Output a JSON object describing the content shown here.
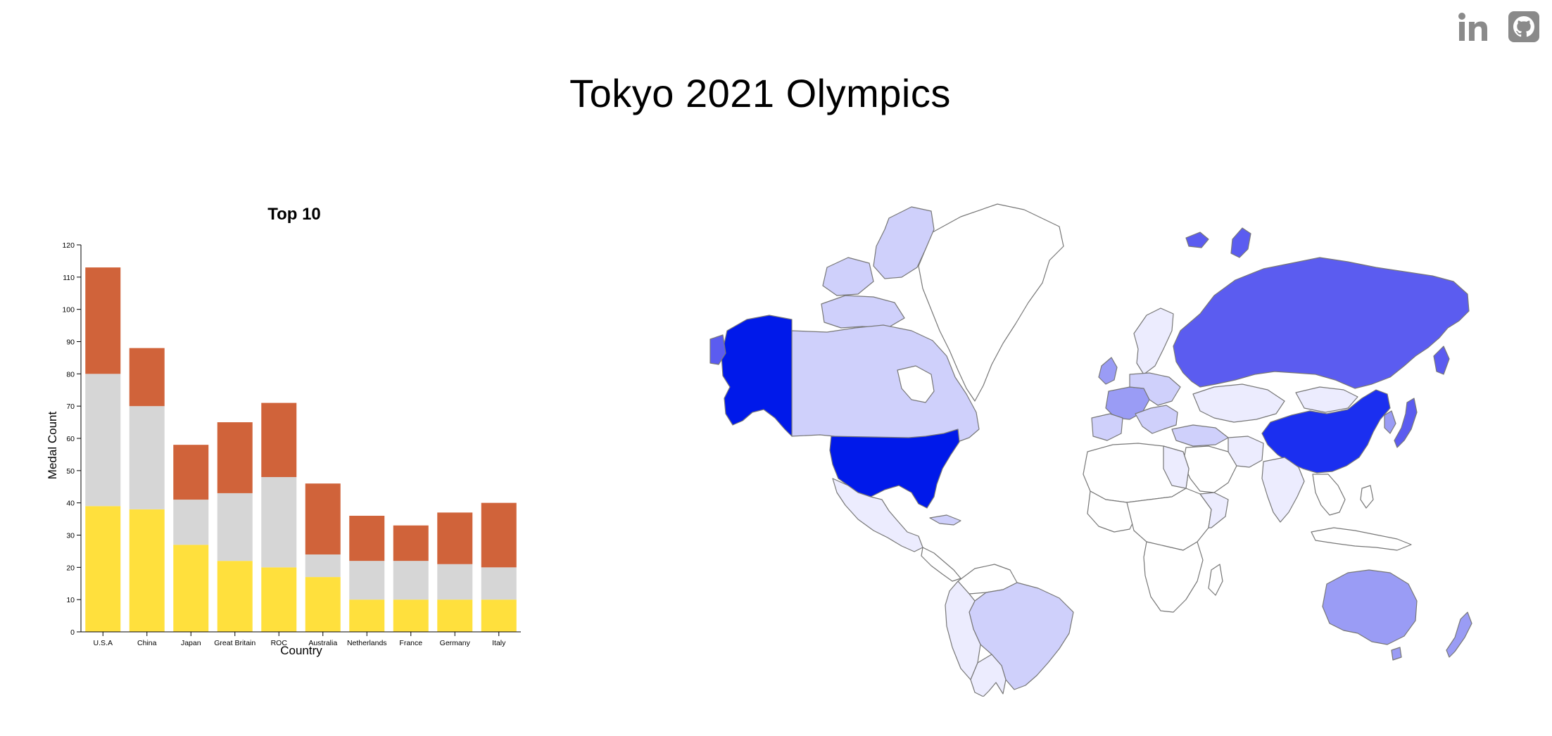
{
  "page": {
    "title": "Tokyo 2021 Olympics"
  },
  "social": {
    "linkedin_icon": "linkedin-icon",
    "github_icon": "github-icon",
    "icon_color": "#8a8a8a"
  },
  "colors": {
    "gold": "#ffe03d",
    "silver": "#d6d6d6",
    "bronze": "#d0633a",
    "map_border": "#777777",
    "map_strong": "#0019ea",
    "map_high": "#5b5cf0",
    "map_mid": "#9a9cf5",
    "map_low": "#cfd0fb",
    "map_faint": "#ececfe",
    "map_none": "#ffffff"
  },
  "chart_data": {
    "type": "bar",
    "stacked": true,
    "title": "Top 10",
    "xlabel": "Country",
    "ylabel": "Medal Count",
    "ylim": [
      0,
      120
    ],
    "yticks": [
      0,
      10,
      20,
      30,
      40,
      50,
      60,
      70,
      80,
      90,
      100,
      110,
      120
    ],
    "categories": [
      "U.S.A",
      "China",
      "Japan",
      "Great Britain",
      "ROC",
      "Australia",
      "Netherlands",
      "France",
      "Germany",
      "Italy"
    ],
    "series": [
      {
        "color": "#ffe03d",
        "values": [
          39,
          38,
          27,
          22,
          20,
          17,
          10,
          10,
          10,
          10
        ]
      },
      {
        "color": "#d6d6d6",
        "values": [
          41,
          32,
          14,
          21,
          28,
          7,
          12,
          12,
          11,
          10
        ]
      },
      {
        "color": "#d0633a",
        "values": [
          33,
          18,
          17,
          22,
          23,
          22,
          14,
          11,
          16,
          20
        ]
      }
    ]
  }
}
